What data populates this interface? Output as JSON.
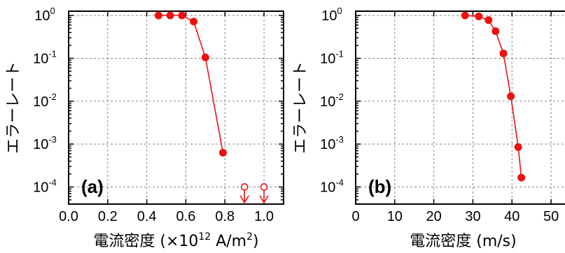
{
  "colors": {
    "series": "#ee1111",
    "grid": "#888888",
    "axis": "#000000"
  },
  "chart_data": [
    {
      "type": "line",
      "panel_label": "(a)",
      "xlabel": "電流密度 (×10",
      "xlabel_sup1": "12",
      "xlabel_mid": " A/m",
      "xlabel_sup2": "2",
      "xlabel_end": ")",
      "ylabel": "エラーレート",
      "xlim": [
        0.0,
        1.1
      ],
      "ylim_log10": [
        -4.4,
        0.1
      ],
      "y_scale": "log",
      "grid": true,
      "x_ticks": [
        0.0,
        0.2,
        0.4,
        0.6,
        0.8,
        1.0
      ],
      "x_tick_labels": [
        "0.0",
        "0.2",
        "0.4",
        "0.6",
        "0.8",
        "1.0"
      ],
      "y_tick_exponents": [
        0,
        -1,
        -2,
        -3,
        -4
      ],
      "y_tick_base": "10",
      "y_tick_sups": [
        "0",
        "-1",
        "-2",
        "-3",
        "-4"
      ],
      "series": [
        {
          "x": [
            0.46,
            0.52,
            0.58,
            0.64,
            0.7,
            0.79
          ],
          "y": [
            1.0,
            1.0,
            1.0,
            0.72,
            0.105,
            0.00063
          ]
        }
      ],
      "upper_bound_markers": {
        "x": [
          0.9,
          1.0
        ],
        "y": [
          0.0001,
          0.0001
        ]
      }
    },
    {
      "type": "line",
      "panel_label": "(b)",
      "xlabel": "電流密度 (m/s)",
      "ylabel": "エラーレート",
      "xlim": [
        0,
        55
      ],
      "ylim_log10": [
        -4.4,
        0.1
      ],
      "y_scale": "log",
      "grid": true,
      "x_ticks": [
        0,
        10,
        20,
        30,
        40,
        50
      ],
      "x_tick_labels": [
        "0",
        "10",
        "20",
        "30",
        "40",
        "50"
      ],
      "y_tick_exponents": [
        0,
        -1,
        -2,
        -3,
        -4
      ],
      "y_tick_base": "10",
      "y_tick_sups": [
        "0",
        "-1",
        "-2",
        "-3",
        "-4"
      ],
      "series": [
        {
          "x": [
            28,
            31.5,
            34,
            35.8,
            37.8,
            39.7,
            41.6,
            42.4
          ],
          "y": [
            1.0,
            0.95,
            0.78,
            0.43,
            0.13,
            0.013,
            0.00085,
            0.000165
          ]
        }
      ]
    }
  ]
}
